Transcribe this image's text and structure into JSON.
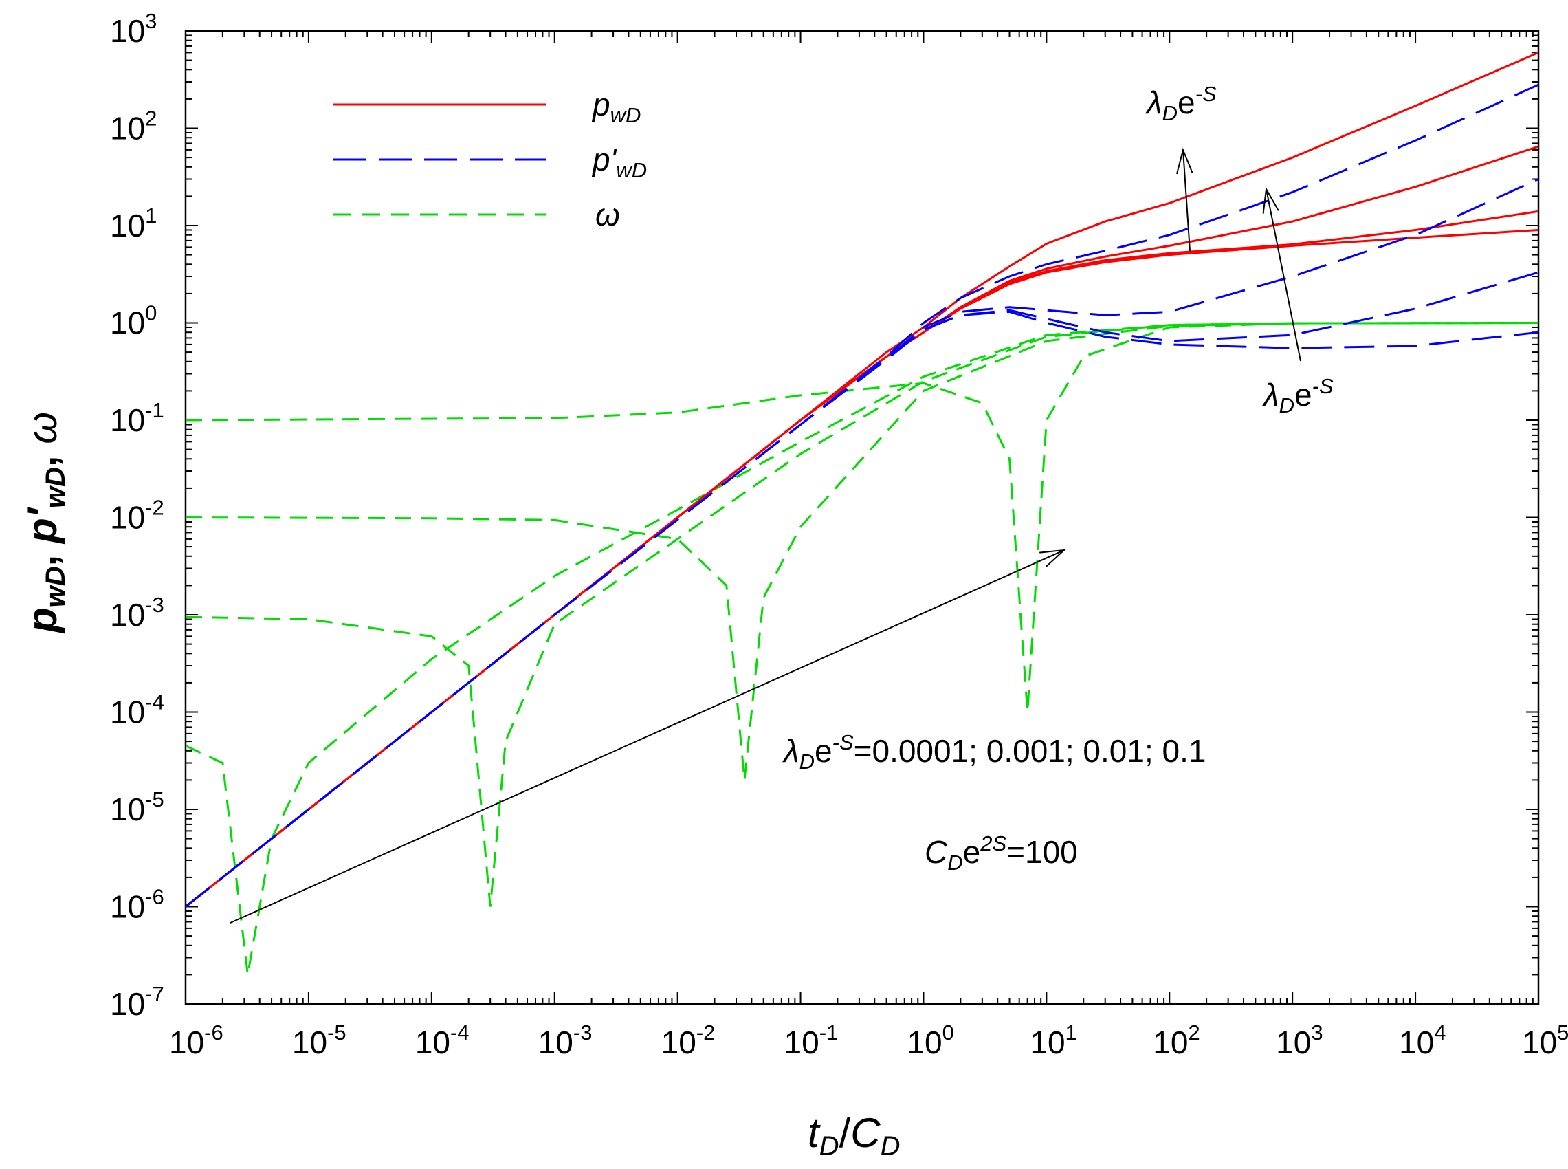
{
  "chart_data": {
    "type": "line",
    "xscale": "log",
    "yscale": "log",
    "xlim": [
      1e-06,
      100000.0
    ],
    "ylim": [
      1e-07,
      1000.0
    ],
    "xlabel": {
      "base": "t",
      "sub1": "D",
      "sep": "/",
      "base2": "C",
      "sub2": "D"
    },
    "ylabel": {
      "p": "p",
      "wD": "wD",
      "sep": ", ",
      "pprime": "p'",
      "sep2": ", ",
      "omega": "ω"
    },
    "x_ticks": [
      {
        "base": "10",
        "exp": "-6",
        "value": 1e-06
      },
      {
        "base": "10",
        "exp": "-5",
        "value": 1e-05
      },
      {
        "base": "10",
        "exp": "-4",
        "value": 0.0001
      },
      {
        "base": "10",
        "exp": "-3",
        "value": 0.001
      },
      {
        "base": "10",
        "exp": "-2",
        "value": 0.01
      },
      {
        "base": "10",
        "exp": "-1",
        "value": 0.1
      },
      {
        "base": "10",
        "exp": "0",
        "value": 1
      },
      {
        "base": "10",
        "exp": "1",
        "value": 10
      },
      {
        "base": "10",
        "exp": "2",
        "value": 100
      },
      {
        "base": "10",
        "exp": "3",
        "value": 1000
      },
      {
        "base": "10",
        "exp": "4",
        "value": 10000
      },
      {
        "base": "10",
        "exp": "5",
        "value": 100000
      }
    ],
    "y_ticks": [
      {
        "base": "10",
        "exp": "-7",
        "value": 1e-07
      },
      {
        "base": "10",
        "exp": "-6",
        "value": 1e-06
      },
      {
        "base": "10",
        "exp": "-5",
        "value": 1e-05
      },
      {
        "base": "10",
        "exp": "-4",
        "value": 0.0001
      },
      {
        "base": "10",
        "exp": "-3",
        "value": 0.001
      },
      {
        "base": "10",
        "exp": "-2",
        "value": 0.01
      },
      {
        "base": "10",
        "exp": "-1",
        "value": 0.1
      },
      {
        "base": "10",
        "exp": "0",
        "value": 1
      },
      {
        "base": "10",
        "exp": "1",
        "value": 10
      },
      {
        "base": "10",
        "exp": "2",
        "value": 100
      },
      {
        "base": "10",
        "exp": "3",
        "value": 1000
      }
    ],
    "legend": [
      {
        "series": "pwD",
        "base": "p",
        "sub": "wD",
        "color": "#ff0000",
        "dash": "solid"
      },
      {
        "series": "dpwD",
        "base": "p'",
        "sub": "wD",
        "color": "#0000ff",
        "dash": "long-dash"
      },
      {
        "series": "omega",
        "base": "ω",
        "sub": "",
        "color": "#00dd00",
        "dash": "dash"
      }
    ],
    "colors": {
      "pwD": "#ff0000",
      "dpwD": "#0000ff",
      "omega": "#00dd00",
      "annotation": "#000000"
    },
    "series": [
      {
        "name": "pwD",
        "lambda_e_minus_s": 0.0001,
        "x": [
          1e-06,
          0.001,
          0.1,
          0.5,
          1,
          2,
          5,
          10,
          30,
          100,
          1000,
          10000,
          100000
        ],
        "y": [
          1e-06,
          0.001,
          0.1,
          0.45,
          0.8,
          1.4,
          2.5,
          3.3,
          4.2,
          5.0,
          6.2,
          7.5,
          9
        ]
      },
      {
        "name": "pwD",
        "lambda_e_minus_s": 0.001,
        "x": [
          1e-06,
          0.001,
          0.1,
          0.5,
          1,
          2,
          5,
          10,
          30,
          100,
          1000,
          10000,
          100000
        ],
        "y": [
          1e-06,
          0.001,
          0.1,
          0.45,
          0.8,
          1.4,
          2.6,
          3.4,
          4.4,
          5.2,
          6.4,
          9,
          14
        ]
      },
      {
        "name": "pwD",
        "lambda_e_minus_s": 0.01,
        "x": [
          1e-06,
          0.001,
          0.1,
          0.5,
          1,
          2,
          5,
          10,
          30,
          100,
          1000,
          10000,
          100000
        ],
        "y": [
          1e-06,
          0.001,
          0.1,
          0.45,
          0.8,
          1.45,
          2.7,
          3.6,
          4.8,
          6.2,
          11,
          25,
          65
        ]
      },
      {
        "name": "pwD",
        "lambda_e_minus_s": 0.1,
        "x": [
          1e-06,
          0.001,
          0.1,
          0.5,
          1,
          2,
          5,
          10,
          30,
          100,
          1000,
          10000,
          100000
        ],
        "y": [
          1e-06,
          0.001,
          0.1,
          0.5,
          0.9,
          1.8,
          3.8,
          6.5,
          11,
          17,
          50,
          170,
          600
        ]
      },
      {
        "name": "dpwD",
        "lambda_e_minus_s": 0.0001,
        "x": [
          1e-06,
          0.001,
          0.1,
          0.5,
          1,
          2,
          5,
          10,
          30,
          100,
          1000,
          10000,
          100000
        ],
        "y": [
          1e-06,
          0.001,
          0.09,
          0.42,
          0.85,
          1.2,
          1.3,
          1.0,
          0.72,
          0.6,
          0.55,
          0.58,
          0.8
        ]
      },
      {
        "name": "dpwD",
        "lambda_e_minus_s": 0.001,
        "x": [
          1e-06,
          0.001,
          0.1,
          0.5,
          1,
          2,
          5,
          10,
          30,
          100,
          1000,
          10000,
          100000
        ],
        "y": [
          1e-06,
          0.001,
          0.09,
          0.42,
          0.85,
          1.2,
          1.35,
          1.1,
          0.8,
          0.65,
          0.75,
          1.4,
          3.3
        ]
      },
      {
        "name": "dpwD",
        "lambda_e_minus_s": 0.01,
        "x": [
          1e-06,
          0.001,
          0.1,
          0.5,
          1,
          2,
          5,
          10,
          30,
          100,
          1000,
          10000,
          100000
        ],
        "y": [
          1e-06,
          0.001,
          0.09,
          0.43,
          0.9,
          1.3,
          1.45,
          1.35,
          1.2,
          1.3,
          3.0,
          8,
          30
        ]
      },
      {
        "name": "dpwD",
        "lambda_e_minus_s": 0.1,
        "x": [
          1e-06,
          0.001,
          0.1,
          0.5,
          1,
          2,
          5,
          10,
          30,
          100,
          1000,
          10000,
          100000
        ],
        "y": [
          1e-06,
          0.001,
          0.09,
          0.45,
          1.0,
          1.8,
          3.0,
          4.0,
          5.5,
          8,
          22,
          75,
          280
        ]
      },
      {
        "name": "omega",
        "lambda_e_minus_s": 0.0001,
        "x": [
          1e-06,
          2e-06,
          3.2e-06,
          5e-06,
          1e-05,
          0.0001,
          0.001,
          0.01,
          0.1,
          1,
          10,
          100,
          1000,
          100000
        ],
        "y": [
          4.5e-05,
          3e-05,
          2e-07,
          5e-06,
          3e-05,
          0.00035,
          0.0025,
          0.012,
          0.06,
          0.28,
          0.75,
          0.95,
          0.99,
          1
        ]
      },
      {
        "name": "omega",
        "lambda_e_minus_s": 0.001,
        "x": [
          1e-06,
          1e-05,
          0.0001,
          0.0002,
          0.0003,
          0.0004,
          0.001,
          0.01,
          0.1,
          1,
          10,
          100,
          1000,
          100000
        ],
        "y": [
          0.00095,
          0.0009,
          0.0006,
          0.0003,
          1e-06,
          5e-05,
          0.0008,
          0.006,
          0.045,
          0.25,
          0.72,
          0.95,
          0.99,
          1
        ]
      },
      {
        "name": "omega",
        "lambda_e_minus_s": 0.01,
        "x": [
          1e-06,
          0.0001,
          0.001,
          0.01,
          0.025,
          0.035,
          0.05,
          0.1,
          1,
          10,
          100,
          1000,
          100000
        ],
        "y": [
          0.01,
          0.0098,
          0.0094,
          0.006,
          0.002,
          2e-05,
          0.0015,
          0.008,
          0.2,
          0.65,
          0.93,
          0.99,
          1
        ]
      },
      {
        "name": "omega",
        "lambda_e_minus_s": 0.1,
        "x": [
          1e-06,
          0.001,
          0.01,
          0.1,
          1,
          3,
          5,
          7,
          10,
          20,
          100,
          1000,
          100000
        ],
        "y": [
          0.1,
          0.105,
          0.12,
          0.18,
          0.24,
          0.15,
          0.04,
          0.0001,
          0.1,
          0.45,
          0.9,
          0.99,
          1
        ]
      }
    ],
    "annotations": {
      "arrow_label_top": {
        "lambda": "λ",
        "sub": "D",
        "e": "e",
        "sup": "-S"
      },
      "arrow_label_right": {
        "lambda": "λ",
        "sub": "D",
        "e": "e",
        "sup": "-S"
      },
      "values_label": {
        "lambda": "λ",
        "sub": "D",
        "e": "e",
        "sup": "-S",
        "text": "=0.0001; 0.001; 0.01; 0.1"
      },
      "cd_label": {
        "c": "C",
        "sub": "D",
        "e": "e",
        "sup": "2S",
        "text": "=100"
      }
    }
  }
}
